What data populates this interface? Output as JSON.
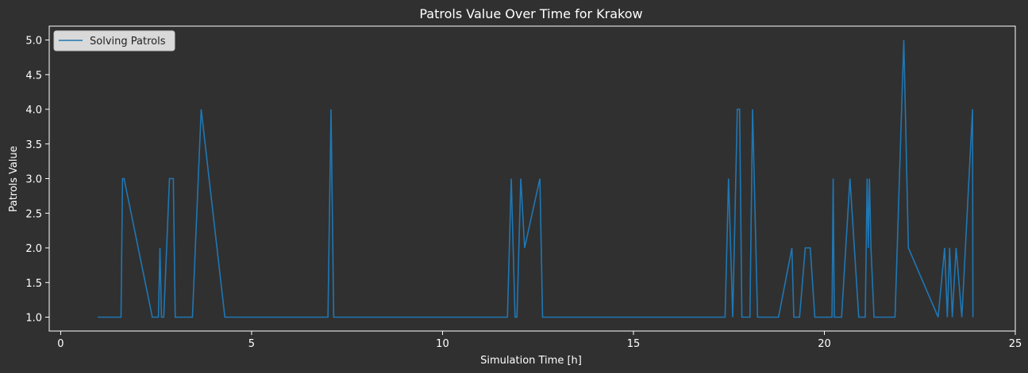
{
  "chart_data": {
    "type": "line",
    "title": "Patrols Value Over Time for Krakow",
    "xlabel": "Simulation Time [h]",
    "ylabel": "Patrols Value",
    "xlim": [
      -0.3,
      25.0
    ],
    "ylim": [
      0.8,
      5.2
    ],
    "xticks": [
      0,
      5,
      10,
      15,
      20,
      25
    ],
    "yticks": [
      1.0,
      1.5,
      2.0,
      2.5,
      3.0,
      3.5,
      4.0,
      4.5,
      5.0
    ],
    "xtick_labels": [
      "0",
      "5",
      "10",
      "15",
      "20",
      "25"
    ],
    "ytick_labels": [
      "1.0",
      "1.5",
      "2.0",
      "2.5",
      "3.0",
      "3.5",
      "4.0",
      "4.5",
      "5.0"
    ],
    "grid": false,
    "legend_position": "upper-left",
    "colors": {
      "background": "#303030",
      "axes_frame": "#ffffff",
      "text": "#ffffff",
      "line": "#1f77b4",
      "legend_bg": "#d9d9d9"
    },
    "series": [
      {
        "name": "Solving Patrols",
        "color": "#1f77b4",
        "x": [
          0.97,
          1.55,
          1.58,
          1.62,
          1.66,
          2.4,
          2.56,
          2.6,
          2.64,
          2.7,
          2.85,
          2.95,
          3.0,
          3.1,
          3.45,
          3.68,
          4.3,
          7.0,
          7.08,
          7.15,
          11.7,
          11.8,
          11.9,
          11.95,
          12.05,
          12.15,
          12.55,
          12.62,
          17.4,
          17.49,
          17.6,
          17.72,
          17.78,
          17.84,
          18.05,
          18.12,
          18.25,
          18.8,
          19.15,
          19.2,
          19.35,
          19.5,
          19.63,
          19.75,
          20.2,
          20.23,
          20.26,
          20.45,
          20.67,
          20.9,
          21.07,
          21.12,
          21.15,
          21.18,
          21.22,
          21.3,
          21.85,
          22.08,
          22.2,
          22.98,
          23.15,
          23.22,
          23.28,
          23.35,
          23.45,
          23.6,
          23.88,
          23.89
        ],
        "y": [
          1,
          1,
          1,
          3,
          3,
          1,
          1,
          2,
          1,
          1,
          3,
          3,
          1,
          1,
          1,
          4,
          1,
          1,
          4,
          1,
          1,
          3,
          1,
          1,
          3,
          2,
          3,
          1,
          1,
          3,
          1,
          4,
          4,
          1,
          1,
          4,
          1,
          1,
          2,
          1,
          1,
          2,
          2,
          1,
          1,
          3,
          1,
          1,
          3,
          1,
          1,
          3,
          2,
          3,
          2,
          1,
          1,
          5,
          2,
          1,
          2,
          1,
          2,
          1,
          2,
          1,
          4,
          1
        ]
      }
    ]
  }
}
